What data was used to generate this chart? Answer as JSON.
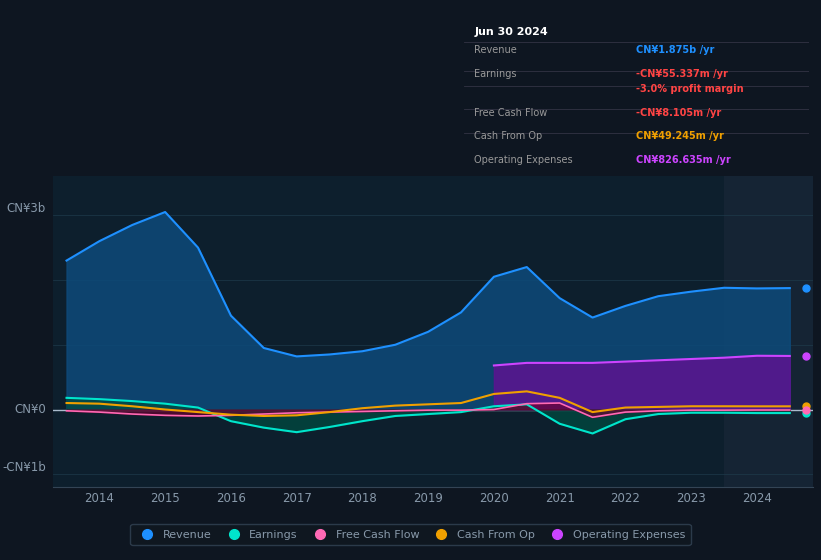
{
  "bg_color": "#0e1621",
  "plot_bg_color": "#0d1f2d",
  "grid_color": "#1e3a4a",
  "text_color": "#8899aa",
  "title_color": "#ffffff",
  "ylabel_top": "CN¥3b",
  "ylabel_bottom": "-CN¥1b",
  "ylabel_zero": "CN¥0",
  "info_box": {
    "date": "Jun 30 2024",
    "rows": [
      {
        "label": "Revenue",
        "value": "CN¥1.875b /yr",
        "value_color": "#1e90ff",
        "sub_label": "",
        "sub_value": "",
        "sub_color": ""
      },
      {
        "label": "Earnings",
        "value": "-CN¥55.337m /yr",
        "value_color": "#ff4444",
        "sub_label": "",
        "sub_value": "-3.0% profit margin",
        "sub_color": "#ff4444"
      },
      {
        "label": "Free Cash Flow",
        "value": "-CN¥8.105m /yr",
        "value_color": "#ff4444",
        "sub_label": "",
        "sub_value": "",
        "sub_color": ""
      },
      {
        "label": "Cash From Op",
        "value": "CN¥49.245m /yr",
        "value_color": "#f0a000",
        "sub_label": "",
        "sub_value": "",
        "sub_color": ""
      },
      {
        "label": "Operating Expenses",
        "value": "CN¥826.635m /yr",
        "value_color": "#cc44ff",
        "sub_label": "",
        "sub_value": "",
        "sub_color": ""
      }
    ]
  },
  "x_years": [
    2013.5,
    2014.0,
    2014.5,
    2015.0,
    2015.5,
    2016.0,
    2016.5,
    2017.0,
    2017.5,
    2018.0,
    2018.5,
    2019.0,
    2019.5,
    2020.0,
    2020.5,
    2021.0,
    2021.5,
    2022.0,
    2022.5,
    2023.0,
    2023.5,
    2024.0,
    2024.5
  ],
  "revenue": [
    2.3,
    2.6,
    2.85,
    3.05,
    2.5,
    1.45,
    0.95,
    0.82,
    0.85,
    0.9,
    1.0,
    1.2,
    1.5,
    2.05,
    2.2,
    1.72,
    1.42,
    1.6,
    1.75,
    1.82,
    1.88,
    1.87,
    1.875
  ],
  "earnings": [
    0.18,
    0.16,
    0.13,
    0.09,
    0.03,
    -0.18,
    -0.28,
    -0.35,
    -0.27,
    -0.18,
    -0.1,
    -0.07,
    -0.04,
    0.05,
    0.08,
    -0.22,
    -0.37,
    -0.15,
    -0.07,
    -0.05,
    -0.05,
    -0.055,
    -0.055
  ],
  "free_cash": [
    -0.02,
    -0.04,
    -0.07,
    -0.09,
    -0.1,
    -0.09,
    -0.07,
    -0.05,
    -0.04,
    -0.03,
    -0.02,
    -0.01,
    -0.01,
    0.0,
    0.09,
    0.1,
    -0.12,
    -0.04,
    -0.02,
    -0.01,
    -0.01,
    -0.008,
    -0.008
  ],
  "cash_from_op": [
    0.1,
    0.09,
    0.05,
    0.0,
    -0.04,
    -0.08,
    -0.1,
    -0.09,
    -0.04,
    0.02,
    0.06,
    0.08,
    0.1,
    0.24,
    0.28,
    0.18,
    -0.04,
    0.03,
    0.04,
    0.05,
    0.05,
    0.049,
    0.049
  ],
  "op_expenses": [
    0.0,
    0.0,
    0.0,
    0.0,
    0.0,
    0.0,
    0.0,
    0.0,
    0.0,
    0.0,
    0.0,
    0.0,
    0.0,
    0.68,
    0.72,
    0.72,
    0.72,
    0.74,
    0.76,
    0.78,
    0.8,
    0.83,
    0.827
  ],
  "revenue_color": "#1e90ff",
  "earnings_color": "#00e5cc",
  "free_cash_color": "#ff69b4",
  "cash_from_op_color": "#f0a000",
  "op_expenses_color": "#cc44ff",
  "revenue_fill": "#0d4a7a",
  "earnings_fill": "#004a40",
  "free_cash_fill": "#6b0030",
  "op_expenses_fill": "#5a1590",
  "ylim": [
    -1.2,
    3.6
  ],
  "xlim": [
    2013.3,
    2024.85
  ],
  "xticks": [
    2014,
    2015,
    2016,
    2017,
    2018,
    2019,
    2020,
    2021,
    2022,
    2023,
    2024
  ],
  "highlight_x_start": 2023.5,
  "legend_labels": [
    "Revenue",
    "Earnings",
    "Free Cash Flow",
    "Cash From Op",
    "Operating Expenses"
  ],
  "legend_colors": [
    "#1e90ff",
    "#00e5cc",
    "#ff69b4",
    "#f0a000",
    "#cc44ff"
  ]
}
